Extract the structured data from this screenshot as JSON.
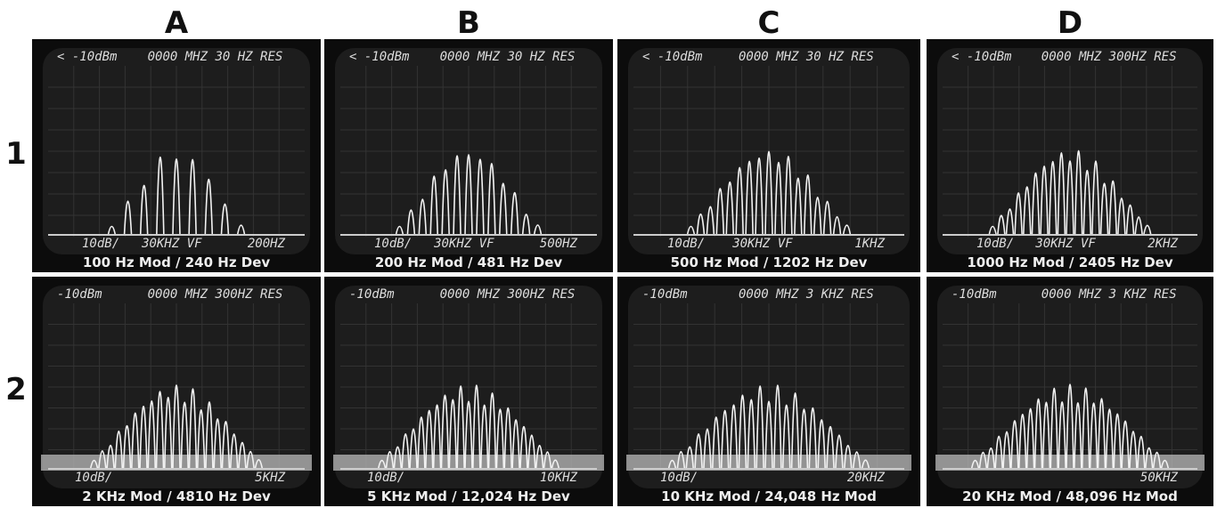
{
  "columns": [
    "A",
    "B",
    "C",
    "D"
  ],
  "rows": [
    "1",
    "2"
  ],
  "panels": [
    {
      "ref": "< -10dBm",
      "center": "0000 MHZ 30 HZ RES",
      "scale": "10dB/",
      "vf": "30KHZ VF",
      "span": "200HZ",
      "caption": "100 Hz Mod / 240 Hz Dev"
    },
    {
      "ref": "< -10dBm",
      "center": "0000 MHZ 30 HZ RES",
      "scale": "10dB/",
      "vf": "30KHZ VF",
      "span": "500HZ",
      "caption": "200 Hz Mod / 481 Hz Dev"
    },
    {
      "ref": "< -10dBm",
      "center": "0000 MHZ 30 HZ RES",
      "scale": "10dB/",
      "vf": "30KHZ VF",
      "span": "1KHZ",
      "caption": "500 Hz Mod / 1202 Hz Dev"
    },
    {
      "ref": "< -10dBm",
      "center": "0000 MHZ 300HZ RES",
      "scale": "10dB/",
      "vf": "30KHZ VF",
      "span": "2KHZ",
      "caption": "1000 Hz Mod / 2405 Hz Dev"
    },
    {
      "ref": "-10dBm",
      "center": "0000 MHZ 300HZ RES",
      "scale": "10dB/",
      "span": "5KHZ",
      "caption": "2 KHz Mod / 4810 Hz Dev"
    },
    {
      "ref": "-10dBm",
      "center": "0000 MHZ 300HZ RES",
      "scale": "10dB/",
      "span": "10KHZ",
      "caption": "5 KHz Mod / 12,024 Hz Dev"
    },
    {
      "ref": "-10dBm",
      "center": "0000 MHZ 3 KHZ RES",
      "scale": "10dB/",
      "span": "20KHZ",
      "caption": "10 KHz Mod / 24,048 Hz Mod"
    },
    {
      "ref": "-10dBm",
      "center": "0000 MHZ 3 KHZ RES",
      "span": "50KHZ",
      "caption": "20 KHz Mod / 48,096 Hz Mod"
    }
  ]
}
